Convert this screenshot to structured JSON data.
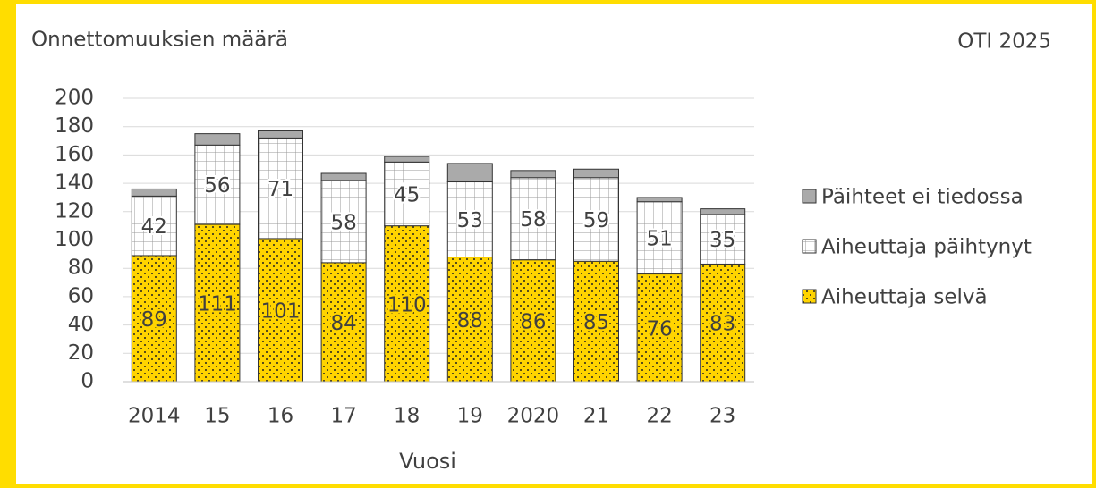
{
  "chart_data": {
    "type": "stacked_bar",
    "title": "Onnettomuuksien määrä",
    "source": "OTI 2025",
    "x_label": "Vuosi",
    "categories": [
      "2014",
      "15",
      "16",
      "17",
      "18",
      "19",
      "2020",
      "21",
      "22",
      "23"
    ],
    "series": [
      {
        "name": "Aiheuttaja selvä",
        "color": "#ffd400",
        "pattern": "dots",
        "values": [
          89,
          111,
          101,
          84,
          110,
          88,
          86,
          85,
          76,
          83
        ]
      },
      {
        "name": "Aiheuttaja päihtynyt",
        "color": "#ffffff",
        "pattern": "grid",
        "values": [
          42,
          56,
          71,
          58,
          45,
          53,
          58,
          59,
          51,
          35
        ]
      },
      {
        "name": "Päihteet ei tiedossa",
        "color": "#aaaaaa",
        "pattern": "solid",
        "values": [
          5,
          8,
          5,
          5,
          4,
          13,
          5,
          6,
          3,
          4
        ]
      }
    ],
    "data_labels": [
      true,
      true,
      false
    ],
    "ylim": [
      0,
      200
    ],
    "yticks": [
      0,
      20,
      40,
      60,
      80,
      100,
      120,
      140,
      160,
      180,
      200
    ],
    "grid": true,
    "legend": "right"
  }
}
